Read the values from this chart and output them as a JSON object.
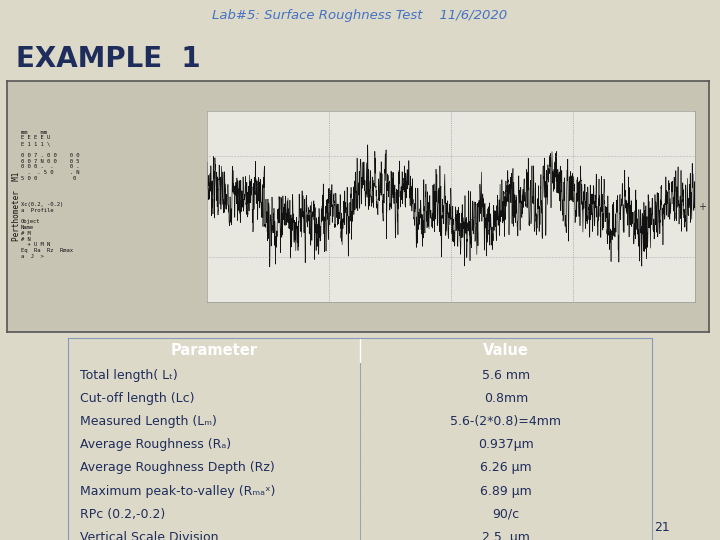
{
  "title_text": "Lab#5: Surface Roughness Test    11/6/2020",
  "example_label": "EXAMPLE  1",
  "bg_color": "#ddd9c8",
  "img_border_color": "#555555",
  "img_bg_color": "#c8c4b4",
  "chart_bg_color": "#e8e8e0",
  "header_color": "#4472c4",
  "row_color_odd": "#c5d5e8",
  "row_color_even": "#e8eef5",
  "header_text_color": "#ffffff",
  "body_text_color": "#1f2d5c",
  "title_color": "#4472c4",
  "col_split": 0.5,
  "parameters": [
    "Total length( L_t)",
    "Cut-off length (L_c)",
    "Measured Length (L_m)",
    "Average Roughness (R_a)",
    "Average Roughness Depth (R_z)",
    "Maximum peak-to-valley (R_max)",
    "RPc (0.2,-0.2)",
    "Vertical Scale Division"
  ],
  "values": [
    "5.6 mm",
    "0.8mm",
    "5.6-(2*0.8)=4mm",
    "0.937μm",
    "6.26 μm",
    "6.89 μm",
    "90/c",
    "2.5  μm"
  ],
  "page_number": "21"
}
